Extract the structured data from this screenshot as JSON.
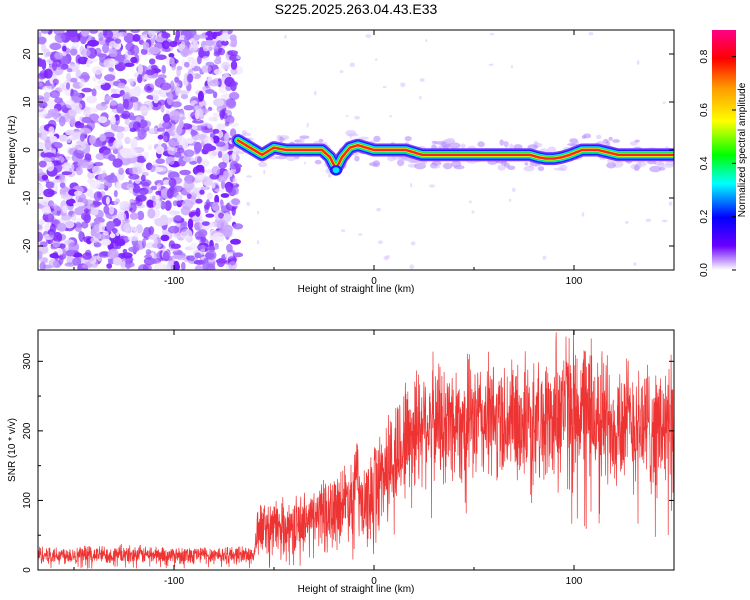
{
  "title": "S225.2025.263.04.43.E33",
  "chart_data": [
    {
      "type": "heatmap",
      "xlabel": "Height of straight line (km)",
      "ylabel": "Frequency (Hz)",
      "xlim": [
        -168,
        150
      ],
      "ylim": [
        -25,
        25
      ],
      "xticks": [
        -100,
        0,
        100
      ],
      "yticks": [
        -20,
        -10,
        0,
        10,
        20
      ],
      "colorbar": {
        "label": "Normalized spectral amplitude",
        "range": [
          0.0,
          0.9
        ],
        "ticks": [
          0.0,
          0.2,
          0.4,
          0.6,
          0.8
        ],
        "colors": [
          "#ffffff",
          "#6a00ff",
          "#0000ff",
          "#00ffff",
          "#00ff00",
          "#ffff00",
          "#ff9900",
          "#ff0000",
          "#ff0088"
        ]
      },
      "noise_region_x": [
        -168,
        -68
      ],
      "ridge": {
        "x": [
          -68,
          -62,
          -56,
          -50,
          -44,
          -38,
          -32,
          -26,
          -22,
          -19,
          -16,
          -12,
          -8,
          -4,
          0,
          8,
          16,
          24,
          34,
          44,
          54,
          64,
          72,
          78,
          82,
          86,
          90,
          94,
          98,
          104,
          112,
          122,
          134,
          150
        ],
        "freq_hz": [
          2,
          0.5,
          -1,
          0.5,
          0,
          0,
          0,
          0,
          -1.5,
          -4,
          -1.5,
          0.5,
          1,
          0.5,
          0,
          0,
          0,
          -1,
          -1,
          -1,
          -1,
          -1,
          -1,
          -1,
          -1.5,
          -1.8,
          -1.8,
          -1.5,
          -1,
          0,
          0,
          -1,
          -1,
          -1
        ]
      }
    },
    {
      "type": "line",
      "xlabel": "Height of straight line (km)",
      "ylabel": "SNR (10 * v/v)",
      "xlim": [
        -168,
        150
      ],
      "ylim": [
        0,
        345
      ],
      "xticks": [
        -100,
        0,
        100
      ],
      "yticks": [
        0,
        100,
        200,
        300
      ],
      "color": "#ee3333",
      "envelope": {
        "x": [
          -168,
          -60,
          -58,
          -40,
          -20,
          -10,
          -9,
          -8,
          -5,
          0,
          10,
          18,
          25,
          50,
          90,
          91,
          120,
          150
        ],
        "mean": [
          22,
          22,
          60,
          65,
          90,
          110,
          160,
          110,
          80,
          120,
          160,
          200,
          215,
          215,
          215,
          240,
          215,
          200
        ],
        "spread": [
          12,
          12,
          35,
          35,
          45,
          55,
          90,
          55,
          50,
          65,
          75,
          85,
          80,
          80,
          80,
          105,
          85,
          90
        ]
      }
    }
  ]
}
